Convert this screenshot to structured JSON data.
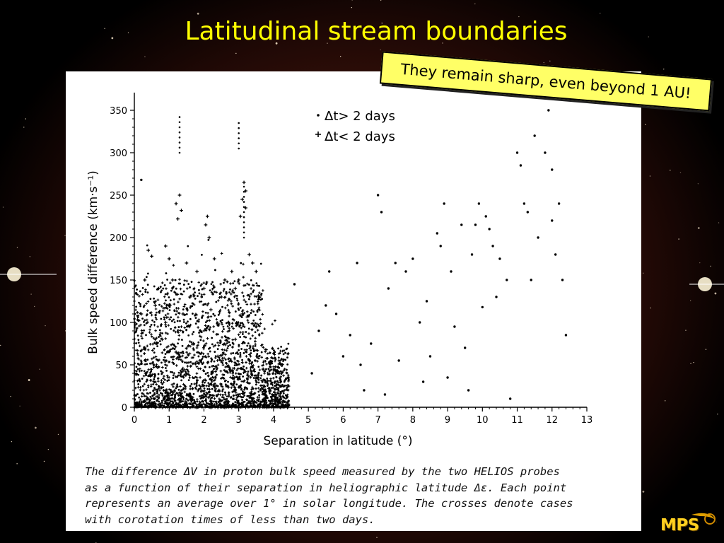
{
  "slide": {
    "title": "Latitudinal stream boundaries",
    "callout": "They remain sharp, even beyond 1 AU!",
    "logo": "MPS"
  },
  "figure": {
    "caption_lines": [
      "The difference ΔV in proton bulk speed measured by the two HELIOS probes",
      "as a function of their separation in heliographic latitude Δε. Each point",
      "represents an average over 1° in solar longitude. The crosses denote cases",
      "with corotation times of less than two days."
    ]
  },
  "colors": {
    "title": "#ffff00",
    "callout_bg": "#ffff66",
    "logo": "#ffd020",
    "background": "#3c120a"
  },
  "chart_data": {
    "type": "scatter",
    "xlabel": "Separation in latitude (°)",
    "ylabel": "Bulk speed difference  (km·s⁻¹)",
    "xlim": [
      0,
      13
    ],
    "ylim": [
      0,
      350
    ],
    "xticks": [
      "0",
      "1",
      "2",
      "3",
      "4",
      "5",
      "6",
      "7",
      "8",
      "9",
      "10",
      "11",
      "12",
      "13"
    ],
    "yticks": [
      "0",
      "50",
      "100",
      "150",
      "200",
      "250",
      "300",
      "350"
    ],
    "legend": {
      "placement": "top-center",
      "dot_label": "Δt> 2 days",
      "cross_label": "Δt< 2 days"
    },
    "series": [
      {
        "name": "Δt> 2 days",
        "marker": "dot",
        "points": [
          [
            0.2,
            268
          ],
          [
            4.6,
            145
          ],
          [
            5.3,
            90
          ],
          [
            5.5,
            120
          ],
          [
            5.6,
            160
          ],
          [
            5.8,
            110
          ],
          [
            6.0,
            60
          ],
          [
            6.2,
            85
          ],
          [
            6.4,
            170
          ],
          [
            6.6,
            20
          ],
          [
            6.8,
            75
          ],
          [
            7.0,
            250
          ],
          [
            7.1,
            230
          ],
          [
            7.3,
            140
          ],
          [
            7.5,
            170
          ],
          [
            7.6,
            55
          ],
          [
            7.8,
            160
          ],
          [
            8.0,
            175
          ],
          [
            8.2,
            100
          ],
          [
            8.4,
            125
          ],
          [
            8.5,
            60
          ],
          [
            8.7,
            205
          ],
          [
            8.8,
            190
          ],
          [
            8.9,
            240
          ],
          [
            9.0,
            35
          ],
          [
            9.1,
            160
          ],
          [
            9.2,
            95
          ],
          [
            9.4,
            215
          ],
          [
            9.5,
            70
          ],
          [
            9.6,
            20
          ],
          [
            9.8,
            215
          ],
          [
            9.9,
            240
          ],
          [
            10.0,
            118
          ],
          [
            10.1,
            225
          ],
          [
            10.2,
            210
          ],
          [
            10.3,
            190
          ],
          [
            10.5,
            175
          ],
          [
            10.7,
            150
          ],
          [
            10.8,
            10
          ],
          [
            11.0,
            300
          ],
          [
            11.1,
            285
          ],
          [
            11.2,
            240
          ],
          [
            11.3,
            230
          ],
          [
            11.5,
            320
          ],
          [
            11.6,
            200
          ],
          [
            11.8,
            300
          ],
          [
            11.9,
            350
          ],
          [
            12.0,
            280
          ],
          [
            12.1,
            180
          ],
          [
            12.3,
            150
          ],
          [
            12.4,
            85
          ],
          [
            12.2,
            240
          ],
          [
            9.7,
            180
          ],
          [
            8.3,
            30
          ],
          [
            7.2,
            15
          ],
          [
            6.5,
            50
          ],
          [
            5.1,
            40
          ],
          [
            10.4,
            130
          ],
          [
            11.4,
            150
          ],
          [
            12.0,
            220
          ]
        ]
      },
      {
        "name": "Δt< 2 days",
        "marker": "cross",
        "points": [
          [
            1.3,
            250
          ],
          [
            1.2,
            240
          ],
          [
            1.35,
            232
          ],
          [
            1.25,
            222
          ],
          [
            2.1,
            225
          ],
          [
            2.05,
            215
          ],
          [
            2.15,
            200
          ],
          [
            3.15,
            265
          ],
          [
            3.2,
            255
          ],
          [
            3.1,
            245
          ],
          [
            3.2,
            235
          ],
          [
            3.05,
            225
          ],
          [
            0.4,
            185
          ],
          [
            0.5,
            178
          ],
          [
            0.9,
            190
          ],
          [
            1.0,
            175
          ],
          [
            1.5,
            170
          ],
          [
            1.8,
            160
          ],
          [
            2.3,
            175
          ],
          [
            2.6,
            150
          ],
          [
            2.8,
            160
          ],
          [
            3.3,
            180
          ],
          [
            3.4,
            170
          ],
          [
            3.5,
            160
          ],
          [
            0.3,
            150
          ],
          [
            0.7,
            140
          ],
          [
            1.1,
            150
          ],
          [
            1.6,
            130
          ],
          [
            2.0,
            140
          ],
          [
            2.5,
            130
          ],
          [
            2.9,
            140
          ],
          [
            3.0,
            150
          ],
          [
            3.6,
            130
          ],
          [
            0.2,
            110
          ],
          [
            0.6,
            120
          ],
          [
            0.9,
            100
          ],
          [
            1.4,
            110
          ],
          [
            1.9,
            90
          ],
          [
            2.2,
            115
          ],
          [
            2.7,
            100
          ],
          [
            3.1,
            110
          ],
          [
            3.5,
            95
          ],
          [
            0.3,
            70
          ],
          [
            0.8,
            80
          ],
          [
            1.2,
            65
          ],
          [
            1.7,
            75
          ],
          [
            2.4,
            60
          ],
          [
            2.9,
            80
          ],
          [
            3.3,
            55
          ],
          [
            3.7,
            45
          ]
        ]
      }
    ]
  }
}
